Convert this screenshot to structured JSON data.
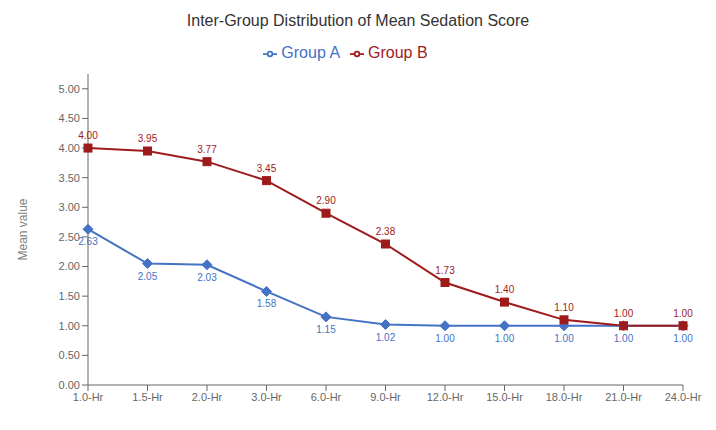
{
  "chart_data": {
    "type": "line",
    "title": "Inter-Group Distribution of Mean Sedation Score",
    "ylabel": "Mean value",
    "categories": [
      "1.0-Hr",
      "1.5-Hr",
      "2.0-Hr",
      "3.0-Hr",
      "6.0-Hr",
      "9.0-Hr",
      "12.0-Hr",
      "15.0-Hr",
      "18.0-Hr",
      "21.0-Hr",
      "24.0-Hr"
    ],
    "series": [
      {
        "name": "Group A",
        "color": "#4472C4",
        "marker": "diamond",
        "values": [
          2.63,
          2.05,
          2.03,
          1.58,
          1.15,
          1.02,
          1.0,
          1.0,
          1.0,
          1.0,
          1.0
        ],
        "value_labels": [
          "2.63",
          "2.05",
          "2.03",
          "1.58",
          "1.15",
          "1.02",
          "1.00",
          "1.00",
          "1.00",
          "1.00",
          "1.00"
        ]
      },
      {
        "name": "Group B",
        "color": "#9E1B1B",
        "marker": "square",
        "values": [
          4.0,
          3.95,
          3.77,
          3.45,
          2.9,
          2.38,
          1.73,
          1.4,
          1.1,
          1.0,
          1.0
        ],
        "value_labels": [
          "4.00",
          "3.95",
          "3.77",
          "3.45",
          "2.90",
          "2.38",
          "1.73",
          "1.40",
          "1.10",
          "1.00",
          "1.00"
        ]
      }
    ],
    "ylim": [
      0.0,
      5.25
    ],
    "yticks": [
      {
        "value": 0,
        "label": "0.00"
      },
      {
        "value": 0.5,
        "label": "0.50"
      },
      {
        "value": 1,
        "label": "1.00"
      },
      {
        "value": 1.5,
        "label": "1.50"
      },
      {
        "value": 2,
        "label": "2.00"
      },
      {
        "value": 2.5,
        "label": "2.50"
      },
      {
        "value": 3,
        "label": "3.00"
      },
      {
        "value": 3.5,
        "label": "3.50"
      },
      {
        "value": 4,
        "label": "4.00"
      },
      {
        "value": 4.5,
        "label": "4.50"
      },
      {
        "value": 5,
        "label": "5.00"
      }
    ],
    "grid": false,
    "legend": "top",
    "data_labels": true
  }
}
